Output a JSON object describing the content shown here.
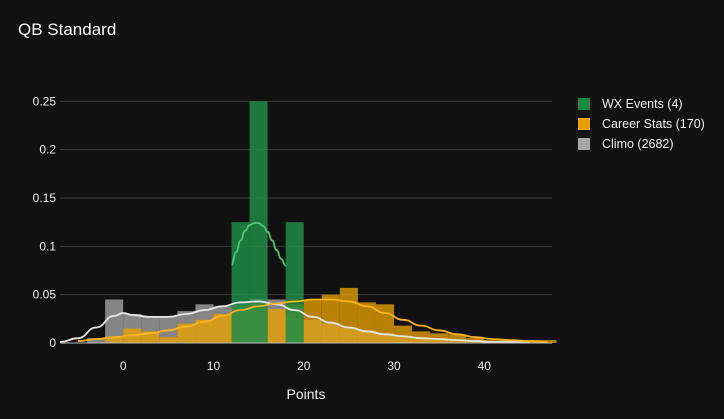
{
  "chart_data": {
    "type": "bar",
    "title": "QB Standard",
    "xlabel": "Points",
    "ylabel": "",
    "xlim": [
      -7,
      47.5
    ],
    "ylim": [
      0,
      0.27
    ],
    "xticks": [
      0,
      10,
      20,
      30,
      40
    ],
    "yticks": [
      0,
      0.05,
      0.1,
      0.15,
      0.2,
      0.25
    ],
    "ytick_labels": [
      "0",
      "0.05",
      "0.1",
      "0.15",
      "0.2",
      "0.25"
    ],
    "grid": true,
    "legend_position": "top-right",
    "barmode": "overlay",
    "series": [
      {
        "name": "Climo (2682)",
        "color": "#a6a6a6",
        "bin_width": 2,
        "bin_starts": [
          -4,
          -2,
          0,
          2,
          4,
          6,
          8,
          10,
          12,
          14,
          16,
          18,
          20,
          22,
          24,
          26,
          28,
          30,
          32,
          34,
          36
        ],
        "values": [
          0.005,
          0.045,
          0.03,
          0.028,
          0.028,
          0.033,
          0.04,
          0.038,
          0.042,
          0.046,
          0.045,
          0.03,
          0.024,
          0.02,
          0.016,
          0.013,
          0.01,
          0.007,
          0.005,
          0.003,
          0.002
        ],
        "kde_x": [
          -7,
          -5,
          -3,
          -1,
          0,
          1,
          3,
          5,
          7,
          9,
          11,
          13,
          15,
          17,
          19,
          21,
          23,
          25,
          27,
          29,
          31,
          33,
          35,
          37,
          39,
          41,
          43,
          45
        ],
        "kde_y": [
          0.001,
          0.005,
          0.016,
          0.028,
          0.031,
          0.029,
          0.027,
          0.027,
          0.03,
          0.034,
          0.038,
          0.042,
          0.043,
          0.04,
          0.034,
          0.027,
          0.021,
          0.016,
          0.012,
          0.009,
          0.007,
          0.005,
          0.004,
          0.003,
          0.002,
          0.001,
          0.001,
          0.0005
        ]
      },
      {
        "name": "Career Stats (170)",
        "color": "#e8a100",
        "bin_width": 2,
        "bin_starts": [
          -2,
          0,
          2,
          4,
          6,
          8,
          10,
          12,
          14,
          16,
          18,
          20,
          22,
          24,
          26,
          28,
          30,
          32,
          34,
          36,
          38,
          40,
          42,
          44,
          46
        ],
        "values": [
          0.006,
          0.015,
          0.012,
          0.006,
          0.02,
          0.024,
          0.03,
          0.036,
          0.04,
          0.035,
          0.04,
          0.045,
          0.05,
          0.057,
          0.042,
          0.04,
          0.018,
          0.012,
          0.01,
          0.009,
          0.005,
          0.003,
          0.003,
          0.003,
          0.003
        ],
        "kde_x": [
          -5,
          -3,
          -1,
          1,
          3,
          5,
          7,
          9,
          11,
          13,
          15,
          17,
          19,
          21,
          23,
          25,
          27,
          29,
          31,
          33,
          35,
          37,
          39,
          41,
          43,
          45,
          47
        ],
        "kde_y": [
          0.002,
          0.004,
          0.006,
          0.008,
          0.01,
          0.013,
          0.017,
          0.022,
          0.028,
          0.034,
          0.038,
          0.041,
          0.043,
          0.045,
          0.045,
          0.043,
          0.038,
          0.031,
          0.024,
          0.018,
          0.013,
          0.009,
          0.006,
          0.004,
          0.003,
          0.002,
          0.001
        ]
      },
      {
        "name": "WX Events (4)",
        "color": "#1e8b45",
        "bin_width": 2,
        "bin_starts": [
          12,
          14,
          18
        ],
        "values": [
          0.125,
          0.25,
          0.125
        ],
        "kde_x": [
          12,
          12.5,
          13,
          13.5,
          14,
          14.5,
          15,
          15.5,
          16,
          16.5,
          17,
          17.5,
          18
        ],
        "kde_y": [
          0.081,
          0.094,
          0.106,
          0.116,
          0.122,
          0.124,
          0.124,
          0.121,
          0.115,
          0.106,
          0.096,
          0.087,
          0.08
        ]
      }
    ],
    "legend": [
      "WX Events (4)",
      "Career Stats (170)",
      "Climo (2682)"
    ]
  }
}
